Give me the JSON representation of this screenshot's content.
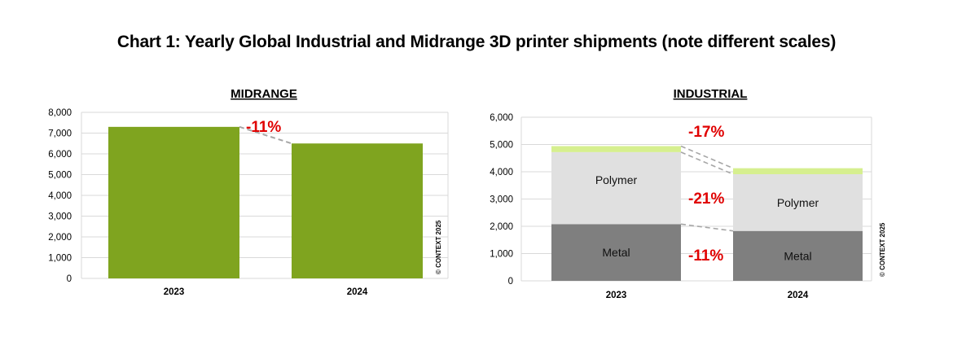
{
  "title": "Chart 1: Yearly Global Industrial and Midrange 3D printer shipments (note different scales)",
  "copyright": "© CONTEXT 2025",
  "chart_data": [
    {
      "type": "bar",
      "title": "MIDRANGE",
      "categories": [
        "2023",
        "2024"
      ],
      "values": [
        7300,
        6500
      ],
      "ylim": [
        0,
        8000
      ],
      "yticks": [
        "0",
        "1,000",
        "2,000",
        "3,000",
        "4,000",
        "5,000",
        "6,000",
        "7,000",
        "8,000"
      ],
      "grid": true,
      "color": "#7fa41f",
      "annotations": [
        {
          "label": "-11%"
        }
      ]
    },
    {
      "type": "bar",
      "stacked": true,
      "title": "INDUSTRIAL",
      "categories": [
        "2023",
        "2024"
      ],
      "ylim": [
        0,
        6000
      ],
      "yticks": [
        "0",
        "1,000",
        "2,000",
        "3,000",
        "4,000",
        "5,000",
        "6,000"
      ],
      "grid": true,
      "series": [
        {
          "name": "Metal",
          "values": [
            2080,
            1830
          ],
          "color": "#7f7f7f",
          "change": "-11%"
        },
        {
          "name": "Polymer",
          "values": [
            2640,
            2080
          ],
          "color": "#e0e0e0",
          "change": "-21%"
        },
        {
          "values": [
            220,
            220
          ],
          "color": "#d6ef8f"
        }
      ],
      "annotations": [
        {
          "label": "-17%",
          "ref": "total"
        }
      ]
    }
  ]
}
